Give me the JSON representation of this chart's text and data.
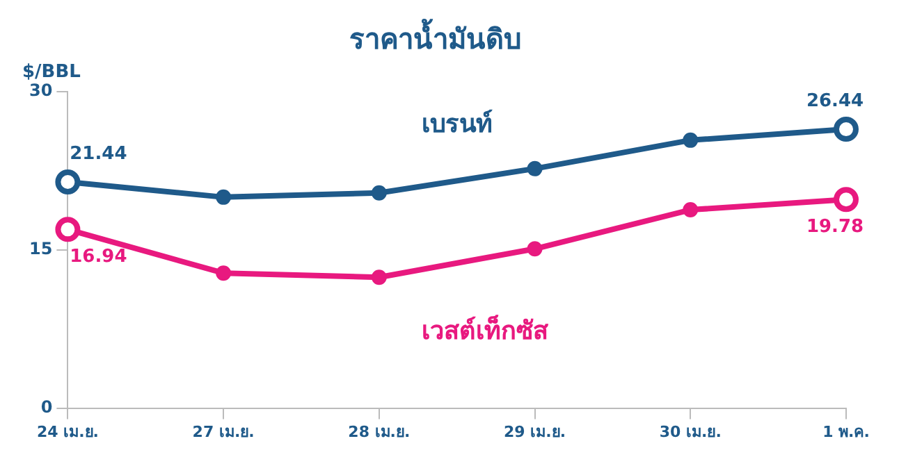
{
  "chart_data": {
    "type": "line",
    "title": "ราคาน้ำมันดิบ",
    "ylabel": "$/BBL",
    "categories": [
      "24 เม.ย.",
      "27 เม.ย.",
      "28 เม.ย.",
      "29 เม.ย.",
      "30 เม.ย.",
      "1 พ.ค."
    ],
    "series": [
      {
        "name": "เบรนท์",
        "color": "#1f5a8a",
        "values": [
          21.44,
          20.0,
          20.4,
          22.7,
          25.4,
          26.44
        ],
        "value_labels": [
          "21.44",
          null,
          null,
          null,
          null,
          "26.44"
        ]
      },
      {
        "name": "เวสต์เท็กซัส",
        "color": "#e8197f",
        "values": [
          16.94,
          12.8,
          12.4,
          15.1,
          18.8,
          19.78
        ],
        "value_labels": [
          "16.94",
          null,
          null,
          null,
          null,
          "19.78"
        ]
      }
    ],
    "ylim": [
      0,
      30
    ],
    "yticks": [
      0,
      15,
      30
    ],
    "marker": "circle",
    "line_style": "solid"
  }
}
